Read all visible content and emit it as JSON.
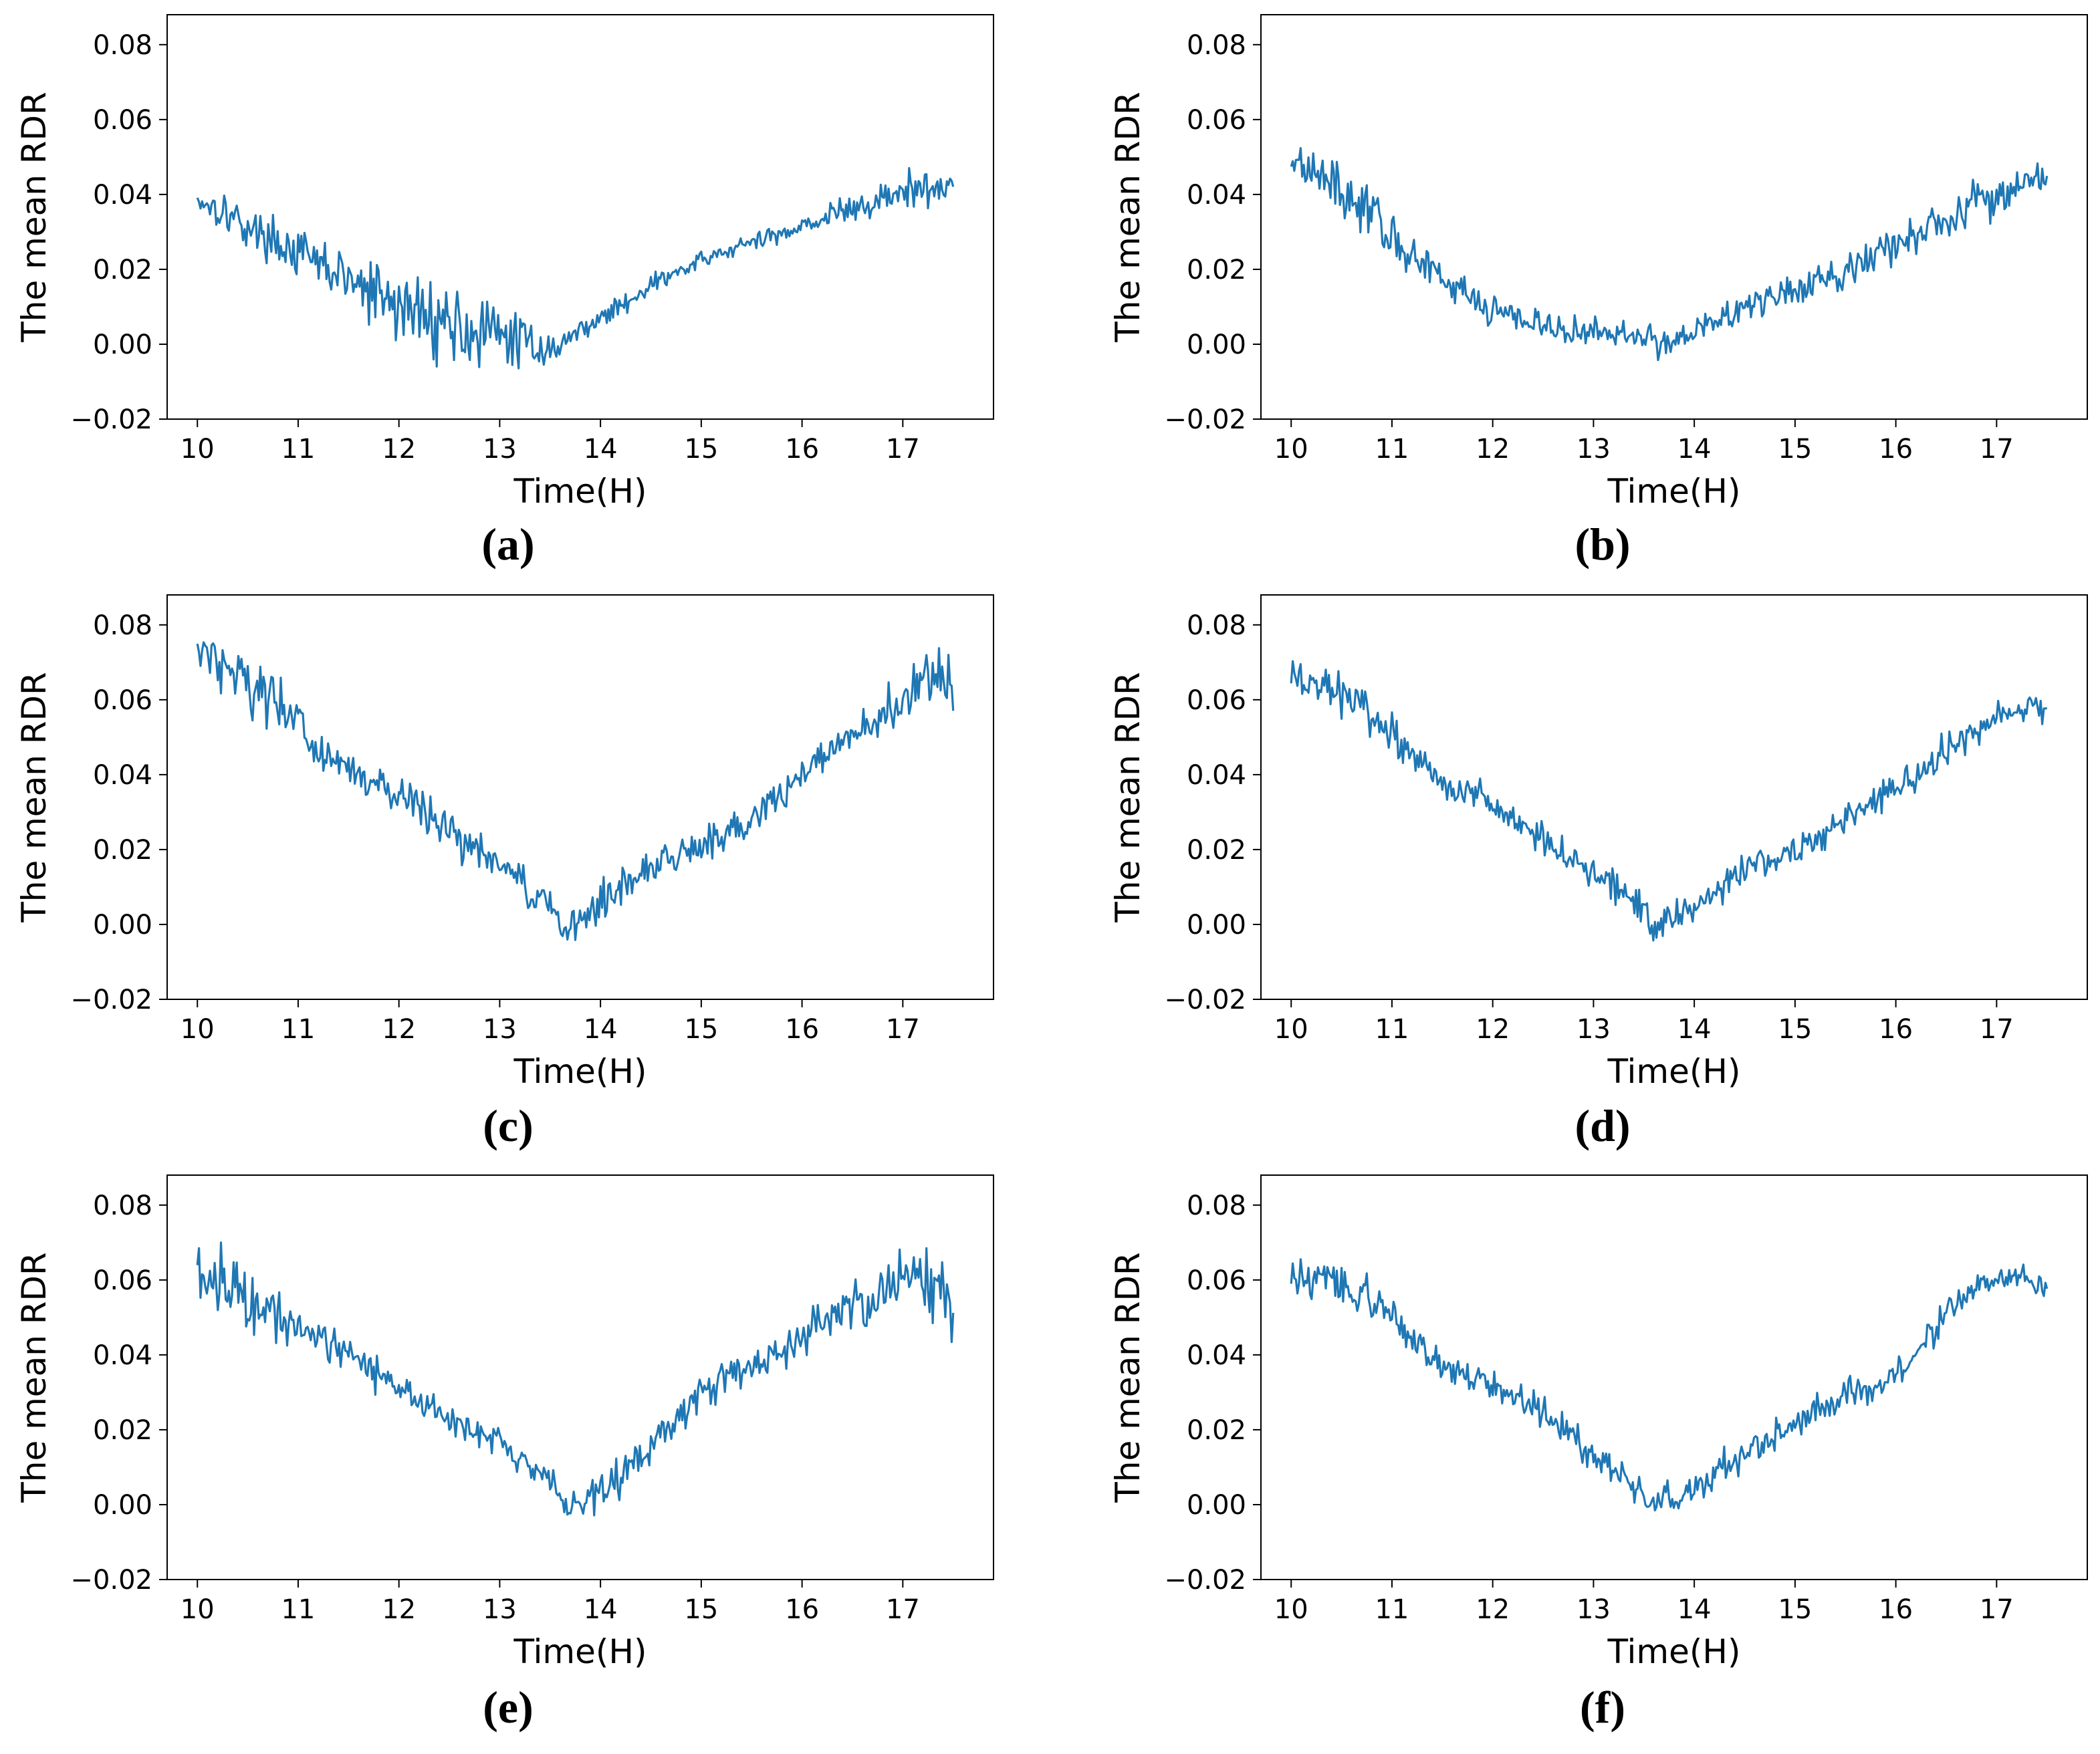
{
  "figure": {
    "captions": [
      "(a)",
      "(b)",
      "(c)",
      "(d)",
      "(e)",
      "(f)"
    ],
    "line_color": "#1f77b4"
  },
  "chart_data": [
    {
      "type": "line",
      "panel": "a",
      "xlabel": "Time(H)",
      "ylabel": "The mean RDR",
      "xlim": [
        9.7,
        17.9
      ],
      "ylim": [
        -0.02,
        0.088
      ],
      "xticks": [
        10,
        11,
        12,
        13,
        14,
        15,
        16,
        17
      ],
      "xtick_labels": [
        "10",
        "11",
        "12",
        "13",
        "14",
        "15",
        "16",
        "17"
      ],
      "yticks": [
        -0.02,
        0.0,
        0.02,
        0.04,
        0.06,
        0.08
      ],
      "ytick_labels": [
        "−0.02",
        "0.00",
        "0.02",
        "0.04",
        "0.06",
        "0.08"
      ],
      "series": [
        {
          "name": "mean RDR",
          "x": [
            10.0,
            10.25,
            10.5,
            10.75,
            11.0,
            11.25,
            11.5,
            11.75,
            12.0,
            12.25,
            12.5,
            12.75,
            13.0,
            13.25,
            13.5,
            13.75,
            14.0,
            14.25,
            14.5,
            14.75,
            15.0,
            15.25,
            15.5,
            15.75,
            16.0,
            16.25,
            16.5,
            16.75,
            17.0,
            17.25,
            17.5
          ],
          "y": [
            0.039,
            0.036,
            0.031,
            0.028,
            0.024,
            0.021,
            0.017,
            0.013,
            0.01,
            0.008,
            0.006,
            0.003,
            0.002,
            0.001,
            -0.002,
            0.003,
            0.007,
            0.011,
            0.016,
            0.019,
            0.022,
            0.025,
            0.027,
            0.029,
            0.032,
            0.034,
            0.036,
            0.038,
            0.041,
            0.041,
            0.042
          ],
          "amplitude": [
            0.006,
            0.006,
            0.006,
            0.006,
            0.007,
            0.008,
            0.009,
            0.011,
            0.012,
            0.012,
            0.012,
            0.012,
            0.01,
            0.007,
            0.004,
            0.003,
            0.003,
            0.003,
            0.003,
            0.003,
            0.003,
            0.003,
            0.003,
            0.003,
            0.003,
            0.004,
            0.005,
            0.005,
            0.006,
            0.006,
            0.005
          ]
        }
      ]
    },
    {
      "type": "line",
      "panel": "b",
      "xlabel": "Time(H)",
      "ylabel": "The mean RDR",
      "xlim": [
        9.7,
        17.9
      ],
      "ylim": [
        -0.02,
        0.088
      ],
      "xticks": [
        10,
        11,
        12,
        13,
        14,
        15,
        16,
        17
      ],
      "xtick_labels": [
        "10",
        "11",
        "12",
        "13",
        "14",
        "15",
        "16",
        "17"
      ],
      "yticks": [
        -0.02,
        0.0,
        0.02,
        0.04,
        0.06,
        0.08
      ],
      "ytick_labels": [
        "−0.02",
        "0.00",
        "0.02",
        "0.04",
        "0.06",
        "0.08"
      ],
      "series": [
        {
          "name": "mean RDR",
          "x": [
            10.0,
            10.25,
            10.5,
            10.75,
            11.0,
            11.25,
            11.5,
            11.75,
            12.0,
            12.25,
            12.5,
            12.75,
            13.0,
            13.25,
            13.5,
            13.75,
            14.0,
            14.25,
            14.5,
            14.75,
            15.0,
            15.25,
            15.5,
            15.75,
            16.0,
            16.25,
            16.5,
            16.75,
            17.0,
            17.25,
            17.5
          ],
          "y": [
            0.05,
            0.047,
            0.041,
            0.036,
            0.029,
            0.022,
            0.017,
            0.013,
            0.01,
            0.007,
            0.005,
            0.003,
            0.003,
            0.003,
            0.002,
            0.0,
            0.004,
            0.007,
            0.01,
            0.012,
            0.014,
            0.017,
            0.02,
            0.023,
            0.026,
            0.03,
            0.033,
            0.038,
            0.041,
            0.043,
            0.045
          ],
          "amplitude": [
            0.007,
            0.007,
            0.007,
            0.007,
            0.007,
            0.006,
            0.005,
            0.005,
            0.005,
            0.005,
            0.005,
            0.005,
            0.005,
            0.005,
            0.005,
            0.005,
            0.005,
            0.005,
            0.005,
            0.005,
            0.005,
            0.006,
            0.006,
            0.007,
            0.007,
            0.007,
            0.007,
            0.007,
            0.007,
            0.006,
            0.006
          ]
        }
      ]
    },
    {
      "type": "line",
      "panel": "c",
      "xlabel": "Time(H)",
      "ylabel": "The mean RDR",
      "xlim": [
        9.7,
        17.9
      ],
      "ylim": [
        -0.02,
        0.088
      ],
      "xticks": [
        10,
        11,
        12,
        13,
        14,
        15,
        16,
        17
      ],
      "xtick_labels": [
        "10",
        "11",
        "12",
        "13",
        "14",
        "15",
        "16",
        "17"
      ],
      "yticks": [
        -0.02,
        0.0,
        0.02,
        0.04,
        0.06,
        0.08
      ],
      "ytick_labels": [
        "−0.02",
        "0.00",
        "0.02",
        "0.04",
        "0.06",
        "0.08"
      ],
      "series": [
        {
          "name": "mean RDR",
          "x": [
            10.0,
            10.25,
            10.5,
            10.75,
            11.0,
            11.25,
            11.5,
            11.75,
            12.0,
            12.25,
            12.5,
            12.75,
            13.0,
            13.25,
            13.5,
            13.6,
            13.75,
            14.0,
            14.25,
            14.5,
            14.75,
            15.0,
            15.25,
            15.5,
            15.75,
            16.0,
            16.25,
            16.5,
            16.75,
            17.0,
            17.25,
            17.5
          ],
          "y": [
            0.074,
            0.07,
            0.066,
            0.059,
            0.053,
            0.046,
            0.041,
            0.037,
            0.034,
            0.03,
            0.025,
            0.021,
            0.016,
            0.01,
            0.004,
            -0.002,
            0.001,
            0.006,
            0.012,
            0.016,
            0.018,
            0.021,
            0.025,
            0.029,
            0.034,
            0.04,
            0.045,
            0.05,
            0.055,
            0.06,
            0.064,
            0.066
          ],
          "amplitude": [
            0.008,
            0.009,
            0.01,
            0.009,
            0.008,
            0.007,
            0.006,
            0.006,
            0.006,
            0.006,
            0.007,
            0.006,
            0.006,
            0.006,
            0.005,
            0.005,
            0.005,
            0.006,
            0.006,
            0.005,
            0.005,
            0.005,
            0.006,
            0.006,
            0.006,
            0.006,
            0.006,
            0.006,
            0.007,
            0.009,
            0.011,
            0.01
          ]
        }
      ]
    },
    {
      "type": "line",
      "panel": "d",
      "xlabel": "Time(H)",
      "ylabel": "The mean RDR",
      "xlim": [
        9.7,
        17.9
      ],
      "ylim": [
        -0.02,
        0.088
      ],
      "xticks": [
        10,
        11,
        12,
        13,
        14,
        15,
        16,
        17
      ],
      "xtick_labels": [
        "10",
        "11",
        "12",
        "13",
        "14",
        "15",
        "16",
        "17"
      ],
      "yticks": [
        -0.02,
        0.0,
        0.02,
        0.04,
        0.06,
        0.08
      ],
      "ytick_labels": [
        "−0.02",
        "0.00",
        "0.02",
        "0.04",
        "0.06",
        "0.08"
      ],
      "series": [
        {
          "name": "mean RDR",
          "x": [
            10.0,
            10.25,
            10.5,
            10.75,
            11.0,
            11.25,
            11.5,
            11.75,
            12.0,
            12.25,
            12.5,
            12.75,
            13.0,
            13.25,
            13.5,
            13.6,
            13.75,
            14.0,
            14.25,
            14.5,
            14.75,
            15.0,
            15.25,
            15.5,
            15.75,
            16.0,
            16.25,
            16.5,
            16.75,
            17.0,
            17.25,
            17.5
          ],
          "y": [
            0.066,
            0.064,
            0.062,
            0.056,
            0.05,
            0.044,
            0.039,
            0.035,
            0.032,
            0.028,
            0.023,
            0.018,
            0.014,
            0.01,
            0.004,
            -0.001,
            0.001,
            0.005,
            0.01,
            0.015,
            0.017,
            0.02,
            0.023,
            0.028,
            0.033,
            0.037,
            0.041,
            0.046,
            0.051,
            0.055,
            0.057,
            0.058
          ],
          "amplitude": [
            0.006,
            0.006,
            0.007,
            0.006,
            0.006,
            0.005,
            0.005,
            0.005,
            0.005,
            0.005,
            0.005,
            0.005,
            0.005,
            0.005,
            0.005,
            0.005,
            0.005,
            0.005,
            0.005,
            0.005,
            0.005,
            0.005,
            0.005,
            0.005,
            0.005,
            0.005,
            0.005,
            0.005,
            0.005,
            0.005,
            0.005,
            0.005
          ]
        }
      ]
    },
    {
      "type": "line",
      "panel": "e",
      "xlabel": "Time(H)",
      "ylabel": "The mean RDR",
      "xlim": [
        9.7,
        17.9
      ],
      "ylim": [
        -0.02,
        0.088
      ],
      "xticks": [
        10,
        11,
        12,
        13,
        14,
        15,
        16,
        17
      ],
      "xtick_labels": [
        "10",
        "11",
        "12",
        "13",
        "14",
        "15",
        "16",
        "17"
      ],
      "yticks": [
        -0.02,
        0.0,
        0.02,
        0.04,
        0.06,
        0.08
      ],
      "ytick_labels": [
        "−0.02",
        "0.00",
        "0.02",
        "0.04",
        "0.06",
        "0.08"
      ],
      "series": [
        {
          "name": "mean RDR",
          "x": [
            10.0,
            10.25,
            10.5,
            10.75,
            11.0,
            11.25,
            11.5,
            11.75,
            12.0,
            12.25,
            12.5,
            12.75,
            13.0,
            13.25,
            13.5,
            13.7,
            14.0,
            14.25,
            14.5,
            14.75,
            15.0,
            15.25,
            15.5,
            15.75,
            16.0,
            16.25,
            16.5,
            16.75,
            17.0,
            17.25,
            17.5
          ],
          "y": [
            0.062,
            0.059,
            0.056,
            0.052,
            0.049,
            0.045,
            0.04,
            0.036,
            0.032,
            0.027,
            0.023,
            0.02,
            0.016,
            0.011,
            0.006,
            -0.002,
            0.004,
            0.009,
            0.016,
            0.023,
            0.029,
            0.034,
            0.037,
            0.041,
            0.045,
            0.049,
            0.053,
            0.057,
            0.061,
            0.06,
            0.052
          ],
          "amplitude": [
            0.009,
            0.01,
            0.011,
            0.009,
            0.007,
            0.006,
            0.006,
            0.006,
            0.005,
            0.005,
            0.005,
            0.005,
            0.005,
            0.005,
            0.005,
            0.005,
            0.006,
            0.006,
            0.006,
            0.006,
            0.006,
            0.006,
            0.006,
            0.006,
            0.006,
            0.006,
            0.007,
            0.008,
            0.009,
            0.011,
            0.012
          ]
        }
      ]
    },
    {
      "type": "line",
      "panel": "f",
      "xlabel": "Time(H)",
      "ylabel": "The mean RDR",
      "xlim": [
        9.7,
        17.9
      ],
      "ylim": [
        -0.02,
        0.088
      ],
      "xticks": [
        10,
        11,
        12,
        13,
        14,
        15,
        16,
        17
      ],
      "xtick_labels": [
        "10",
        "11",
        "12",
        "13",
        "14",
        "15",
        "16",
        "17"
      ],
      "yticks": [
        -0.02,
        0.0,
        0.02,
        0.04,
        0.06,
        0.08
      ],
      "ytick_labels": [
        "−0.02",
        "0.00",
        "0.02",
        "0.04",
        "0.06",
        "0.08"
      ],
      "series": [
        {
          "name": "mean RDR",
          "x": [
            10.0,
            10.25,
            10.5,
            10.75,
            11.0,
            11.25,
            11.5,
            11.75,
            12.0,
            12.25,
            12.5,
            12.75,
            13.0,
            13.25,
            13.5,
            13.65,
            14.0,
            14.25,
            14.5,
            14.75,
            15.0,
            15.25,
            15.5,
            15.75,
            16.0,
            16.25,
            16.5,
            16.75,
            17.0,
            17.25,
            17.5
          ],
          "y": [
            0.06,
            0.06,
            0.059,
            0.055,
            0.05,
            0.043,
            0.037,
            0.035,
            0.032,
            0.029,
            0.025,
            0.019,
            0.013,
            0.008,
            0.003,
            0.0,
            0.004,
            0.009,
            0.014,
            0.018,
            0.022,
            0.026,
            0.029,
            0.031,
            0.035,
            0.042,
            0.05,
            0.057,
            0.06,
            0.061,
            0.058
          ],
          "amplitude": [
            0.006,
            0.006,
            0.006,
            0.006,
            0.005,
            0.005,
            0.005,
            0.005,
            0.005,
            0.005,
            0.005,
            0.005,
            0.005,
            0.005,
            0.005,
            0.005,
            0.005,
            0.005,
            0.005,
            0.005,
            0.005,
            0.005,
            0.005,
            0.005,
            0.005,
            0.005,
            0.005,
            0.004,
            0.004,
            0.004,
            0.004
          ]
        }
      ]
    }
  ]
}
